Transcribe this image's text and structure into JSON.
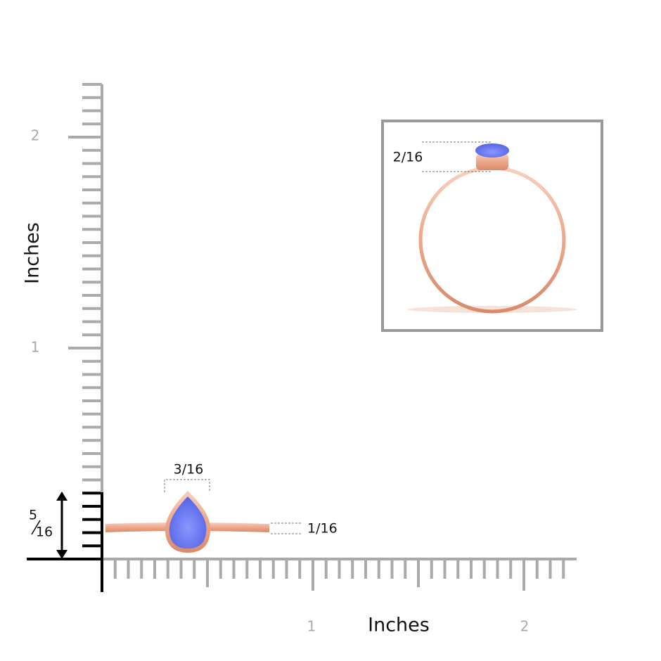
{
  "y_axis": {
    "label": "Inches",
    "ticks": [
      "2",
      "1"
    ]
  },
  "x_axis": {
    "label": "Inches",
    "ticks": [
      "1",
      "2"
    ]
  },
  "dimensions": {
    "stone_width": "3/16",
    "band_width": "1/16",
    "height": {
      "numerator": "5",
      "denominator": "16"
    },
    "inset_height": "2/16"
  }
}
